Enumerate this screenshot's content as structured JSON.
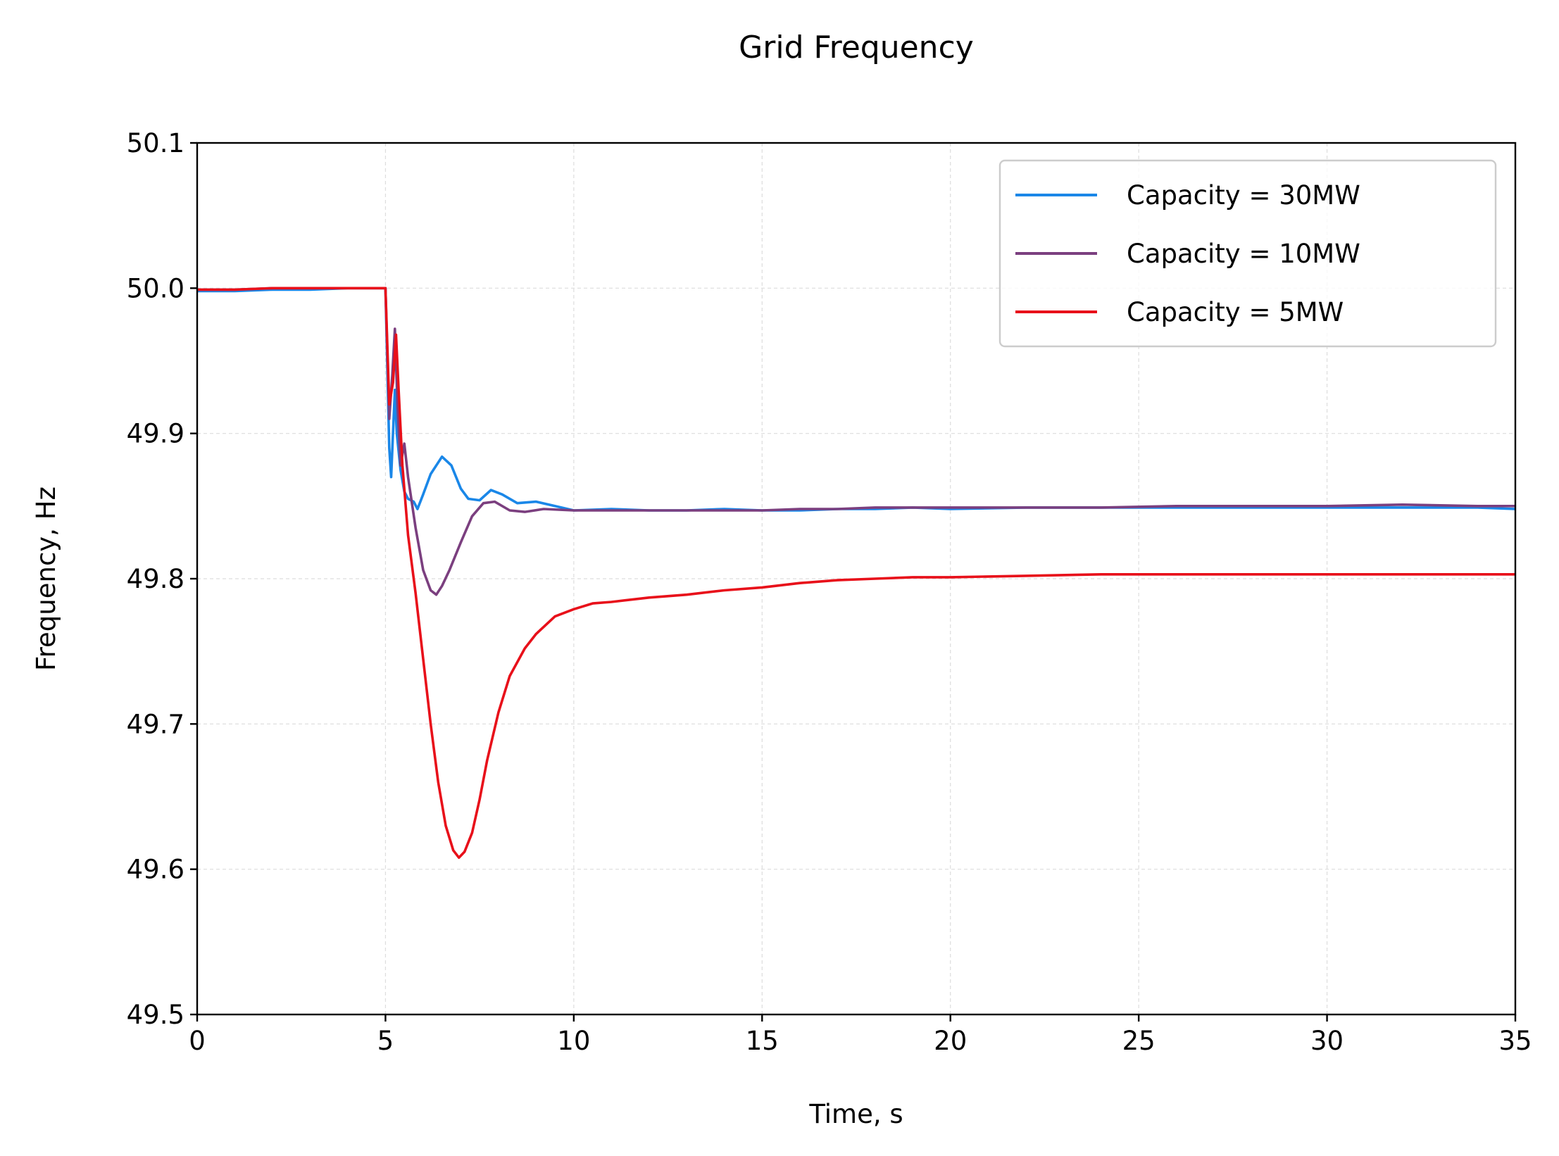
{
  "chart_data": {
    "type": "line",
    "title": "Grid Frequency",
    "xlabel": "Time, s",
    "ylabel": "Frequency, Hz",
    "xlim": [
      0,
      35
    ],
    "ylim": [
      49.5,
      50.1
    ],
    "xticks": [
      "0",
      "5",
      "10",
      "15",
      "20",
      "25",
      "30",
      "35"
    ],
    "yticks": [
      "49.5",
      "49.6",
      "49.7",
      "49.8",
      "49.9",
      "50.0",
      "50.1"
    ],
    "grid": true,
    "legend_position": "top-right",
    "series": [
      {
        "name": "Capacity = 30MW",
        "color": "#1a87e8",
        "points": [
          [
            0,
            49.998
          ],
          [
            1,
            49.998
          ],
          [
            2,
            49.999
          ],
          [
            3,
            49.999
          ],
          [
            4,
            50.0
          ],
          [
            5,
            50.0
          ],
          [
            5.1,
            49.89
          ],
          [
            5.15,
            49.87
          ],
          [
            5.2,
            49.9
          ],
          [
            5.25,
            49.93
          ],
          [
            5.3,
            49.9
          ],
          [
            5.4,
            49.875
          ],
          [
            5.5,
            49.86
          ],
          [
            5.6,
            49.855
          ],
          [
            5.75,
            49.853
          ],
          [
            5.85,
            49.848
          ],
          [
            6.0,
            49.858
          ],
          [
            6.2,
            49.872
          ],
          [
            6.5,
            49.884
          ],
          [
            6.75,
            49.878
          ],
          [
            7.0,
            49.862
          ],
          [
            7.2,
            49.855
          ],
          [
            7.5,
            49.854
          ],
          [
            7.8,
            49.861
          ],
          [
            8.1,
            49.858
          ],
          [
            8.5,
            49.852
          ],
          [
            9.0,
            49.853
          ],
          [
            9.5,
            49.85
          ],
          [
            10.0,
            49.847
          ],
          [
            11,
            49.848
          ],
          [
            12,
            49.847
          ],
          [
            13,
            49.847
          ],
          [
            14,
            49.848
          ],
          [
            15,
            49.847
          ],
          [
            16,
            49.847
          ],
          [
            17,
            49.848
          ],
          [
            18,
            49.848
          ],
          [
            19,
            49.849
          ],
          [
            20,
            49.848
          ],
          [
            22,
            49.849
          ],
          [
            24,
            49.849
          ],
          [
            26,
            49.849
          ],
          [
            28,
            49.849
          ],
          [
            30,
            49.849
          ],
          [
            32,
            49.849
          ],
          [
            34,
            49.849
          ],
          [
            35,
            49.848
          ]
        ]
      },
      {
        "name": "Capacity = 10MW",
        "color": "#7b3f7f",
        "points": [
          [
            0,
            49.999
          ],
          [
            1,
            49.999
          ],
          [
            2,
            50.0
          ],
          [
            3,
            50.0
          ],
          [
            4,
            50.0
          ],
          [
            5,
            50.0
          ],
          [
            5.1,
            49.91
          ],
          [
            5.18,
            49.94
          ],
          [
            5.25,
            49.972
          ],
          [
            5.32,
            49.92
          ],
          [
            5.4,
            49.878
          ],
          [
            5.5,
            49.893
          ],
          [
            5.6,
            49.87
          ],
          [
            5.8,
            49.835
          ],
          [
            6.0,
            49.806
          ],
          [
            6.2,
            49.792
          ],
          [
            6.35,
            49.789
          ],
          [
            6.5,
            49.795
          ],
          [
            6.7,
            49.806
          ],
          [
            7.0,
            49.825
          ],
          [
            7.3,
            49.843
          ],
          [
            7.6,
            49.852
          ],
          [
            7.9,
            49.853
          ],
          [
            8.3,
            49.847
          ],
          [
            8.7,
            49.846
          ],
          [
            9.2,
            49.848
          ],
          [
            10,
            49.847
          ],
          [
            11,
            49.847
          ],
          [
            12,
            49.847
          ],
          [
            13,
            49.847
          ],
          [
            14,
            49.847
          ],
          [
            15,
            49.847
          ],
          [
            16,
            49.848
          ],
          [
            17,
            49.848
          ],
          [
            18,
            49.849
          ],
          [
            19,
            49.849
          ],
          [
            20,
            49.849
          ],
          [
            22,
            49.849
          ],
          [
            24,
            49.849
          ],
          [
            26,
            49.85
          ],
          [
            28,
            49.85
          ],
          [
            30,
            49.85
          ],
          [
            32,
            49.851
          ],
          [
            34,
            49.85
          ],
          [
            35,
            49.85
          ]
        ]
      },
      {
        "name": "Capacity = 5MW",
        "color": "#e8101a",
        "points": [
          [
            0,
            49.999
          ],
          [
            1,
            49.999
          ],
          [
            2,
            50.0
          ],
          [
            3,
            50.0
          ],
          [
            4,
            50.0
          ],
          [
            5,
            50.0
          ],
          [
            5.1,
            49.92
          ],
          [
            5.2,
            49.935
          ],
          [
            5.28,
            49.968
          ],
          [
            5.35,
            49.93
          ],
          [
            5.45,
            49.878
          ],
          [
            5.6,
            49.83
          ],
          [
            5.8,
            49.79
          ],
          [
            6.0,
            49.745
          ],
          [
            6.2,
            49.7
          ],
          [
            6.4,
            49.66
          ],
          [
            6.6,
            49.63
          ],
          [
            6.8,
            49.613
          ],
          [
            6.95,
            49.608
          ],
          [
            7.1,
            49.612
          ],
          [
            7.3,
            49.625
          ],
          [
            7.5,
            49.648
          ],
          [
            7.7,
            49.675
          ],
          [
            8.0,
            49.708
          ],
          [
            8.3,
            49.733
          ],
          [
            8.7,
            49.752
          ],
          [
            9.0,
            49.762
          ],
          [
            9.5,
            49.774
          ],
          [
            10.0,
            49.779
          ],
          [
            10.5,
            49.783
          ],
          [
            11,
            49.784
          ],
          [
            12,
            49.787
          ],
          [
            13,
            49.789
          ],
          [
            14,
            49.792
          ],
          [
            15,
            49.794
          ],
          [
            16,
            49.797
          ],
          [
            17,
            49.799
          ],
          [
            18,
            49.8
          ],
          [
            19,
            49.801
          ],
          [
            20,
            49.801
          ],
          [
            22,
            49.802
          ],
          [
            24,
            49.803
          ],
          [
            26,
            49.803
          ],
          [
            28,
            49.803
          ],
          [
            30,
            49.803
          ],
          [
            32,
            49.803
          ],
          [
            34,
            49.803
          ],
          [
            35,
            49.803
          ]
        ]
      }
    ]
  }
}
